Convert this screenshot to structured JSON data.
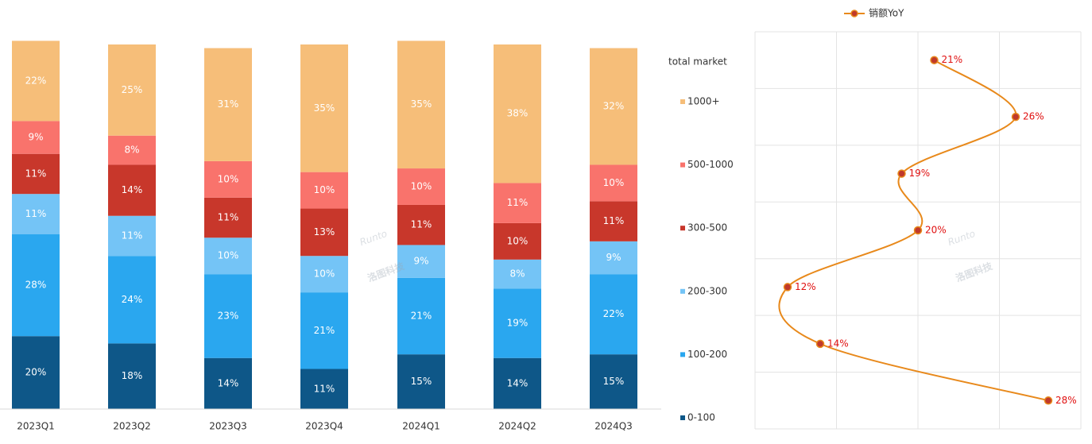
{
  "chart_data": [
    {
      "type": "stacked-bar",
      "categories": [
        "2023Q1",
        "2023Q2",
        "2023Q3",
        "2023Q4",
        "2024Q1",
        "2024Q2",
        "2024Q3"
      ],
      "legend_title": "total market",
      "ylim": [
        0,
        100
      ],
      "series": [
        {
          "name": "0-100",
          "color": "#0e5788",
          "values": [
            20,
            18,
            14,
            11,
            15,
            14,
            15
          ],
          "value_labels": [
            "20%",
            "18%",
            "14%",
            "11%",
            "15%",
            "14%",
            "15%"
          ]
        },
        {
          "name": "100-200",
          "color": "#2aa7ef",
          "values": [
            28,
            24,
            23,
            21,
            21,
            19,
            22
          ],
          "value_labels": [
            "28%",
            "24%",
            "23%",
            "21%",
            "21%",
            "19%",
            "22%"
          ]
        },
        {
          "name": "200-300",
          "color": "#74c4f6",
          "values": [
            11,
            11,
            10,
            10,
            9,
            8,
            9
          ],
          "value_labels": [
            "11%",
            "11%",
            "10%",
            "10%",
            "9%",
            "8%",
            "9%"
          ]
        },
        {
          "name": "300-500",
          "color": "#c8372b",
          "values": [
            11,
            14,
            11,
            13,
            11,
            10,
            11
          ],
          "value_labels": [
            "11%",
            "14%",
            "11%",
            "13%",
            "11%",
            "10%",
            "11%"
          ]
        },
        {
          "name": "500-1000",
          "color": "#f9736c",
          "values": [
            9,
            8,
            10,
            10,
            10,
            11,
            10
          ],
          "value_labels": [
            "9%",
            "8%",
            "10%",
            "10%",
            "10%",
            "11%",
            "10%"
          ]
        },
        {
          "name": "1000+",
          "color": "#f6be79",
          "values": [
            22,
            25,
            31,
            35,
            35,
            38,
            32
          ],
          "value_labels": [
            "22%",
            "25%",
            "31%",
            "35%",
            "35%",
            "38%",
            "32%"
          ]
        }
      ]
    },
    {
      "type": "line",
      "xlim": [
        10,
        30
      ],
      "xticks": [
        10,
        15,
        20,
        25,
        30
      ],
      "grid": true,
      "series": [
        {
          "name": "销额YoY",
          "color": "#e8891b",
          "marker_color": "#c0392b",
          "values": [
            21,
            26,
            19,
            20,
            12,
            14,
            28
          ],
          "value_labels": [
            "21%",
            "26%",
            "19%",
            "20%",
            "12%",
            "14%",
            "28%"
          ]
        }
      ]
    }
  ],
  "watermark": [
    "Runto",
    "洛图科技"
  ]
}
